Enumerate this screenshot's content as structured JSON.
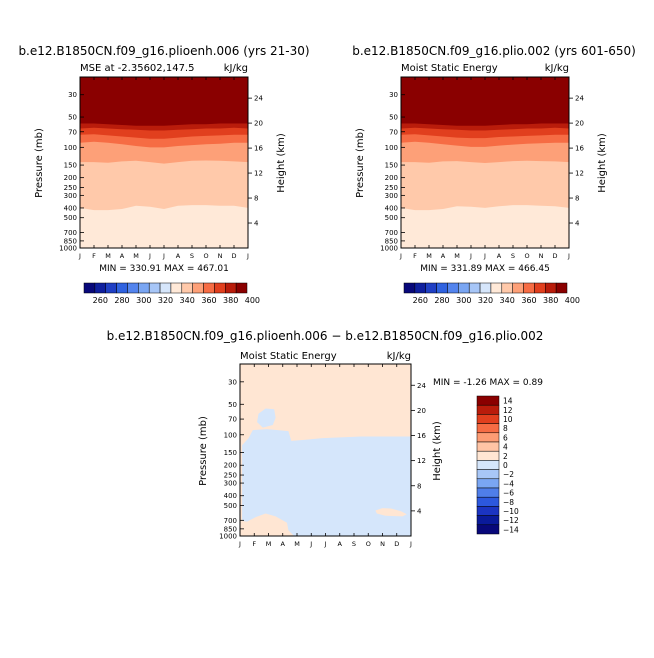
{
  "chart_data": [
    {
      "type": "heatmap",
      "panel": "top-left",
      "case_title": "b.e12.B1850CN.f09_g16.plioenh.006 (yrs 21-30)",
      "subtitle_left": "MSE at -2.35602,147.5",
      "units": "kJ/kg",
      "ylabel": "Pressure (mb)",
      "ylabel_right": "Height (km)",
      "x_ticks": [
        "J",
        "F",
        "M",
        "A",
        "M",
        "J",
        "J",
        "A",
        "S",
        "O",
        "N",
        "D",
        "J"
      ],
      "pressure_ticks": [
        "30",
        "50",
        "70",
        "100",
        "150",
        "200",
        "250",
        "300",
        "400",
        "500",
        "700",
        "850",
        "1000"
      ],
      "height_ticks": [
        "4",
        "8",
        "12",
        "16",
        "20",
        "24"
      ],
      "level_boundaries_mb_jan_to_jan": [
        {
          "value": 340,
          "p": [
            400,
            420,
            420,
            410,
            380,
            390,
            410,
            380,
            375,
            375,
            380,
            380,
            400
          ]
        },
        {
          "value": 350,
          "p": [
            140,
            140,
            142,
            138,
            136,
            140,
            145,
            140,
            136,
            135,
            136,
            138,
            140
          ]
        },
        {
          "value": 360,
          "p": [
            90,
            88,
            90,
            93,
            97,
            100,
            100,
            97,
            95,
            93,
            92,
            90,
            90
          ]
        },
        {
          "value": 370,
          "p": [
            75,
            74,
            76,
            78,
            80,
            82,
            82,
            80,
            78,
            77,
            76,
            75,
            75
          ]
        },
        {
          "value": 380,
          "p": [
            65,
            64,
            65,
            66,
            67,
            68,
            68,
            67,
            66,
            65,
            65,
            64,
            65
          ]
        },
        {
          "value": 390,
          "p": [
            58,
            58,
            59,
            60,
            61,
            61,
            61,
            60,
            59,
            59,
            58,
            58,
            58
          ]
        },
        {
          "value": 400,
          "p": [
            53,
            53,
            53,
            54,
            54,
            55,
            55,
            54,
            54,
            53,
            53,
            53,
            53
          ]
        }
      ],
      "stats_text": "MIN = 330.91  MAX = 467.01"
    },
    {
      "type": "heatmap",
      "panel": "top-right",
      "case_title": "b.e12.B1850CN.f09_g16.plio.002 (yrs 601-650)",
      "subtitle_left": "Moist Static Energy",
      "units": "kJ/kg",
      "ylabel": "Pressure (mb)",
      "ylabel_right": "Height (km)",
      "x_ticks": [
        "J",
        "F",
        "M",
        "A",
        "M",
        "J",
        "J",
        "A",
        "S",
        "O",
        "N",
        "D",
        "J"
      ],
      "pressure_ticks": [
        "30",
        "50",
        "70",
        "100",
        "150",
        "200",
        "250",
        "300",
        "400",
        "500",
        "700",
        "850",
        "1000"
      ],
      "height_ticks": [
        "4",
        "8",
        "12",
        "16",
        "20",
        "24"
      ],
      "level_boundaries_mb_jan_to_jan": [
        {
          "value": 340,
          "p": [
            400,
            420,
            420,
            410,
            385,
            390,
            400,
            385,
            375,
            375,
            380,
            385,
            400
          ]
        },
        {
          "value": 350,
          "p": [
            140,
            140,
            142,
            138,
            137,
            140,
            143,
            140,
            137,
            136,
            137,
            138,
            140
          ]
        },
        {
          "value": 360,
          "p": [
            90,
            88,
            90,
            93,
            96,
            99,
            99,
            96,
            94,
            92,
            91,
            90,
            90
          ]
        },
        {
          "value": 370,
          "p": [
            75,
            74,
            76,
            78,
            80,
            81,
            81,
            79,
            78,
            77,
            76,
            75,
            75
          ]
        },
        {
          "value": 380,
          "p": [
            65,
            64,
            65,
            66,
            67,
            68,
            68,
            67,
            66,
            65,
            65,
            64,
            65
          ]
        },
        {
          "value": 390,
          "p": [
            58,
            58,
            59,
            60,
            61,
            61,
            61,
            60,
            59,
            59,
            58,
            58,
            58
          ]
        },
        {
          "value": 400,
          "p": [
            53,
            53,
            53,
            54,
            54,
            55,
            55,
            54,
            54,
            53,
            53,
            53,
            53
          ]
        }
      ],
      "stats_text": "MIN = 331.89  MAX = 466.45"
    },
    {
      "type": "heatmap",
      "panel": "bottom-diff",
      "case_title": "b.e12.B1850CN.f09_g16.plioenh.006 − b.e12.B1850CN.f09_g16.plio.002",
      "subtitle_left": "Moist Static Energy",
      "units": "kJ/kg",
      "ylabel": "Pressure (mb)",
      "ylabel_right": "Height (km)",
      "x_ticks": [
        "J",
        "F",
        "M",
        "A",
        "M",
        "J",
        "J",
        "A",
        "S",
        "O",
        "N",
        "D",
        "J"
      ],
      "pressure_ticks": [
        "30",
        "50",
        "70",
        "100",
        "150",
        "200",
        "250",
        "300",
        "400",
        "500",
        "700",
        "850",
        "1000"
      ],
      "height_ticks": [
        "4",
        "8",
        "12",
        "16",
        "20",
        "24"
      ],
      "stats_text": "MIN =   -1.26 MAX =    0.89",
      "background_value_range": [
        0,
        2
      ],
      "negative_regions_range": [
        -2,
        0
      ],
      "negative_regions_month_mb": [
        {
          "name": "upper",
          "points": [
            [
              1.3,
              62
            ],
            [
              1.8,
              55
            ],
            [
              2.4,
              56
            ],
            [
              2.5,
              68
            ],
            [
              2.3,
              80
            ],
            [
              1.6,
              85
            ],
            [
              1.2,
              75
            ]
          ]
        },
        {
          "name": "main",
          "points": [
            [
              0.15,
              127
            ],
            [
              0.6,
              108
            ],
            [
              0.9,
              90
            ],
            [
              1.9,
              88
            ],
            [
              3.4,
              92
            ],
            [
              3.6,
              115
            ],
            [
              4.6,
              112
            ],
            [
              5.8,
              108
            ],
            [
              8.5,
              104
            ],
            [
              12,
              104
            ],
            [
              12,
              1000
            ],
            [
              3.8,
              1000
            ],
            [
              3.4,
              880
            ],
            [
              3.3,
              740
            ],
            [
              2.5,
              640
            ],
            [
              1.8,
              600
            ],
            [
              1.1,
              650
            ],
            [
              0.5,
              720
            ],
            [
              0.15,
              710
            ]
          ]
        },
        {
          "name": "mid-island",
          "points": [
            [
              10.3,
              150
            ],
            [
              10.7,
              128
            ],
            [
              11.5,
              125
            ],
            [
              11.7,
              152
            ],
            [
              11.0,
              170
            ],
            [
              10.4,
              165
            ]
          ]
        }
      ],
      "positive_islands_month_mb": [
        {
          "name": "right-low",
          "points": [
            [
              9.5,
              560
            ],
            [
              10.0,
              530
            ],
            [
              10.6,
              535
            ],
            [
              11.3,
              570
            ],
            [
              11.7,
              610
            ],
            [
              11.4,
              640
            ],
            [
              10.2,
              630
            ],
            [
              9.6,
              600
            ]
          ]
        }
      ]
    }
  ],
  "colorbar_top": {
    "tick_labels": [
      "260",
      "280",
      "300",
      "320",
      "340",
      "360",
      "380",
      "400"
    ]
  },
  "colorbar_diff": {
    "tick_labels": [
      "14",
      "12",
      "10",
      "8",
      "6",
      "4",
      "2",
      "0",
      "−2",
      "−4",
      "−6",
      "−8",
      "−10",
      "−12",
      "−14"
    ]
  },
  "colors": {
    "abs_below_min": "#08087a",
    "abs_levels": [
      "#08087a",
      "#0f1f9e",
      "#1f3fc4",
      "#2f62e0",
      "#5384ee",
      "#7aa6f3",
      "#a7c6f7",
      "#d6e6fb",
      "#ffe9d8",
      "#ffc9aa",
      "#fda078",
      "#f66c44",
      "#e13f1e",
      "#b91c0b",
      "#8a0000"
    ],
    "diff_levels": [
      "#08087a",
      "#0a1a9a",
      "#1b34c2",
      "#2c58de",
      "#4f7ee9",
      "#7aa6f3",
      "#a8c7f7",
      "#d5e6fb",
      "#ffe6d3",
      "#ffc4a5",
      "#fd9c74",
      "#f66c44",
      "#e13f1e",
      "#b91c0b",
      "#8a0000"
    ]
  }
}
